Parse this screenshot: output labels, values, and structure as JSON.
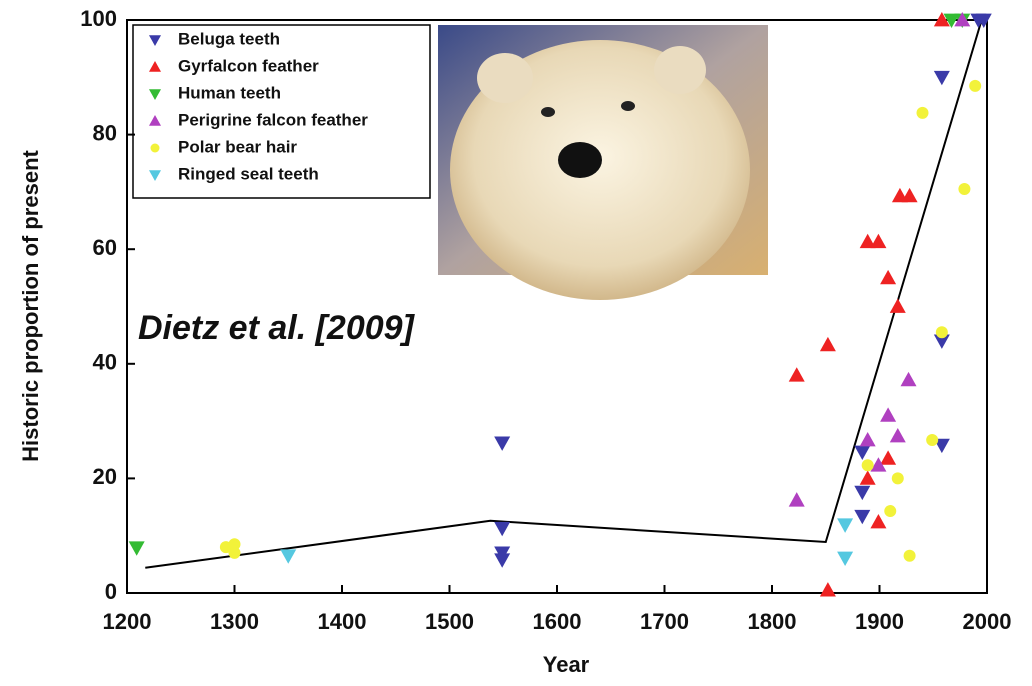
{
  "chart_data": {
    "type": "scatter",
    "xlabel": "Year",
    "ylabel": "Historic proportion of present",
    "annotation": "Dietz et al. [2009]",
    "xlim": [
      1200,
      2000
    ],
    "xticks": [
      1200,
      1300,
      1400,
      1500,
      1600,
      1700,
      1800,
      1900,
      2000
    ],
    "ylim": [
      0,
      100
    ],
    "yticks": [
      0,
      20,
      40,
      60,
      80,
      100
    ],
    "legend": "upper left",
    "series": [
      {
        "name": "Beluga teeth",
        "color": "#3a3aa8",
        "marker": "down",
        "x": [
          1549,
          1549,
          1549,
          1549,
          1884,
          1884,
          1884,
          1958,
          1958,
          1958,
          1992,
          1997
        ],
        "values": [
          26.2,
          11.3,
          7,
          5.8,
          24.6,
          17.6,
          13.4,
          90,
          44,
          25.8,
          100,
          100
        ]
      },
      {
        "name": "Gyrfalcon feather",
        "color": "#ee2222",
        "marker": "up",
        "x": [
          1823,
          1852,
          1852,
          1889,
          1899,
          1908,
          1917,
          1919,
          1928,
          1889,
          1899,
          1908,
          1958
        ],
        "values": [
          38,
          43.3,
          0.5,
          61.3,
          61.3,
          55,
          50,
          69.3,
          69.3,
          20,
          12.4,
          23.5,
          100
        ]
      },
      {
        "name": "Human teeth",
        "color": "#33bb33",
        "marker": "down",
        "x": [
          1209,
          1967,
          1977
        ],
        "values": [
          7.9,
          100,
          100
        ]
      },
      {
        "name": "Perigrine falcon feather",
        "color": "#b040c0",
        "marker": "up",
        "x": [
          1823,
          1889,
          1899,
          1908,
          1917,
          1927,
          1977
        ],
        "values": [
          16.2,
          26.7,
          22.3,
          31,
          27.4,
          37.2,
          100
        ]
      },
      {
        "name": "Polar bear hair",
        "color": "#f2f23a",
        "marker": "circle",
        "x": [
          1292,
          1300,
          1300,
          1889,
          1910,
          1917,
          1928,
          1940,
          1949,
          1958,
          1979,
          1989
        ],
        "values": [
          8,
          8.5,
          7,
          22.3,
          14.3,
          20,
          6.5,
          83.8,
          26.7,
          45.5,
          70.5,
          88.5
        ]
      },
      {
        "name": "Ringed seal teeth",
        "color": "#55c8e0",
        "marker": "down",
        "x": [
          1350,
          1868,
          1868
        ],
        "values": [
          6.5,
          11.9,
          6.1
        ]
      }
    ],
    "line": {
      "color": "#000000",
      "x": [
        1217,
        1538,
        1850,
        1995
      ],
      "values": [
        4.4,
        12.6,
        8.9,
        100
      ]
    }
  }
}
